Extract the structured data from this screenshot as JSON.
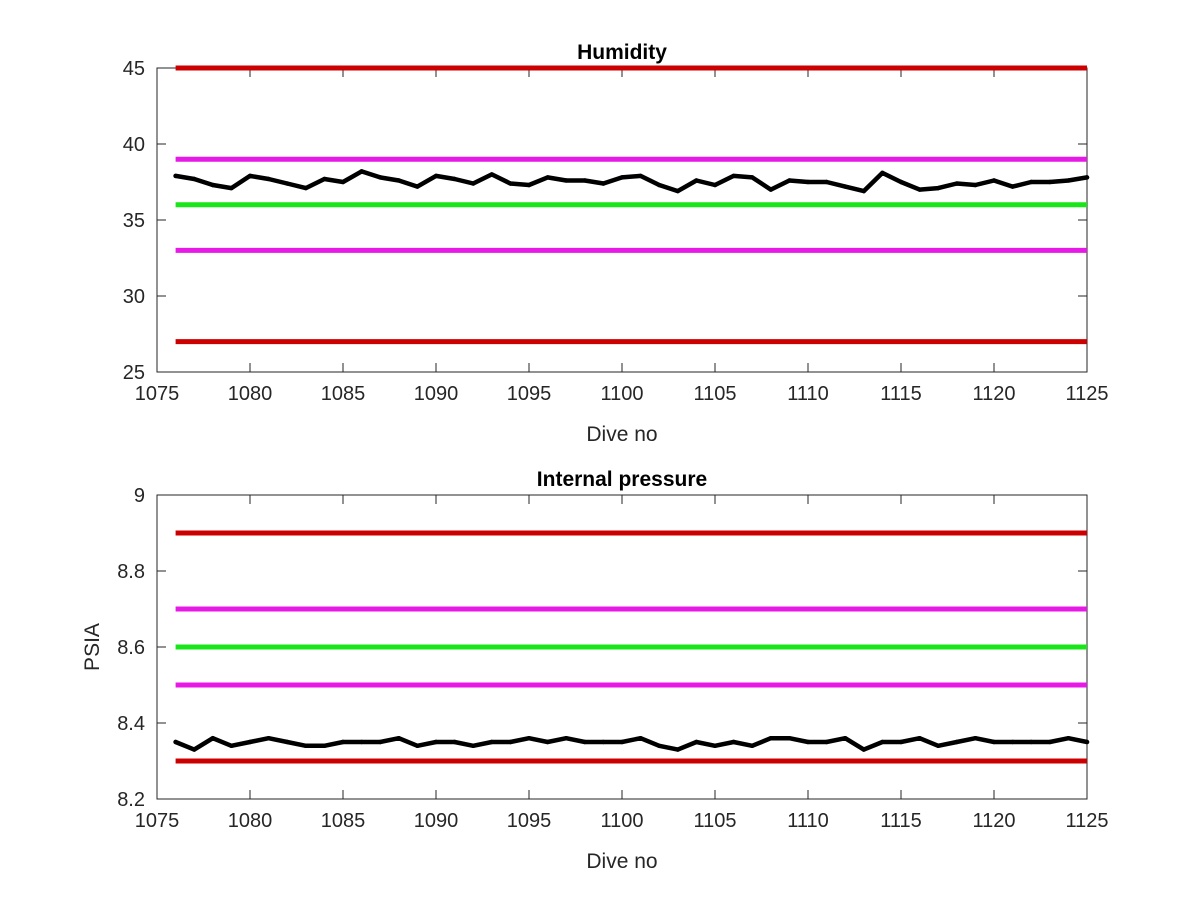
{
  "chart_data": [
    {
      "type": "line",
      "title": "Humidity",
      "xlabel": "Dive no",
      "ylabel": "",
      "xlim": [
        1075,
        1125
      ],
      "ylim": [
        25,
        45
      ],
      "xticks": [
        1075,
        1080,
        1085,
        1090,
        1095,
        1100,
        1105,
        1110,
        1115,
        1120,
        1125
      ],
      "yticks": [
        25,
        30,
        35,
        40,
        45
      ],
      "grid": false,
      "legend": "none",
      "reference_lines": [
        {
          "y": 45,
          "color": "#cc0000",
          "x_range": [
            1076,
            1125
          ]
        },
        {
          "y": 39,
          "color": "#e619e6",
          "x_range": [
            1076,
            1125
          ]
        },
        {
          "y": 36,
          "color": "#19e619",
          "x_range": [
            1076,
            1125
          ]
        },
        {
          "y": 33,
          "color": "#e619e6",
          "x_range": [
            1076,
            1125
          ]
        },
        {
          "y": 27,
          "color": "#cc0000",
          "x_range": [
            1076,
            1125
          ]
        }
      ],
      "series": [
        {
          "color": "#000000",
          "x": [
            1076,
            1077,
            1078,
            1079,
            1080,
            1081,
            1082,
            1083,
            1084,
            1085,
            1086,
            1087,
            1088,
            1089,
            1090,
            1091,
            1092,
            1093,
            1094,
            1095,
            1096,
            1097,
            1098,
            1099,
            1100,
            1101,
            1102,
            1103,
            1104,
            1105,
            1106,
            1107,
            1108,
            1109,
            1110,
            1111,
            1112,
            1113,
            1114,
            1115,
            1116,
            1117,
            1118,
            1119,
            1120,
            1121,
            1122,
            1123,
            1124,
            1125
          ],
          "y": [
            37.9,
            37.7,
            37.3,
            37.1,
            37.9,
            37.7,
            37.4,
            37.1,
            37.7,
            37.5,
            38.2,
            37.8,
            37.6,
            37.2,
            37.9,
            37.7,
            37.4,
            38.0,
            37.4,
            37.3,
            37.8,
            37.6,
            37.6,
            37.4,
            37.8,
            37.9,
            37.3,
            36.9,
            37.6,
            37.3,
            37.9,
            37.8,
            37.0,
            37.6,
            37.5,
            37.5,
            37.2,
            36.9,
            38.1,
            37.5,
            37.0,
            37.1,
            37.4,
            37.3,
            37.6,
            37.2,
            37.5,
            37.5,
            37.6,
            37.8
          ]
        }
      ]
    },
    {
      "type": "line",
      "title": "Internal pressure",
      "xlabel": "Dive no",
      "ylabel": "PSIA",
      "xlim": [
        1075,
        1125
      ],
      "ylim": [
        8.2,
        9
      ],
      "xticks": [
        1075,
        1080,
        1085,
        1090,
        1095,
        1100,
        1105,
        1110,
        1115,
        1120,
        1125
      ],
      "yticks": [
        "8.2",
        "8.4",
        "8.6",
        "8.8",
        "9"
      ],
      "grid": false,
      "legend": "none",
      "reference_lines": [
        {
          "y": 8.9,
          "color": "#cc0000",
          "x_range": [
            1076,
            1125
          ]
        },
        {
          "y": 8.7,
          "color": "#e619e6",
          "x_range": [
            1076,
            1125
          ]
        },
        {
          "y": 8.6,
          "color": "#19e619",
          "x_range": [
            1076,
            1125
          ]
        },
        {
          "y": 8.5,
          "color": "#e619e6",
          "x_range": [
            1076,
            1125
          ]
        },
        {
          "y": 8.3,
          "color": "#cc0000",
          "x_range": [
            1076,
            1125
          ]
        }
      ],
      "series": [
        {
          "color": "#000000",
          "x": [
            1076,
            1077,
            1078,
            1079,
            1080,
            1081,
            1082,
            1083,
            1084,
            1085,
            1086,
            1087,
            1088,
            1089,
            1090,
            1091,
            1092,
            1093,
            1094,
            1095,
            1096,
            1097,
            1098,
            1099,
            1100,
            1101,
            1102,
            1103,
            1104,
            1105,
            1106,
            1107,
            1108,
            1109,
            1110,
            1111,
            1112,
            1113,
            1114,
            1115,
            1116,
            1117,
            1118,
            1119,
            1120,
            1121,
            1122,
            1123,
            1124,
            1125
          ],
          "y": [
            8.35,
            8.33,
            8.36,
            8.34,
            8.35,
            8.36,
            8.35,
            8.34,
            8.34,
            8.35,
            8.35,
            8.35,
            8.36,
            8.34,
            8.35,
            8.35,
            8.34,
            8.35,
            8.35,
            8.36,
            8.35,
            8.36,
            8.35,
            8.35,
            8.35,
            8.36,
            8.34,
            8.33,
            8.35,
            8.34,
            8.35,
            8.34,
            8.36,
            8.36,
            8.35,
            8.35,
            8.36,
            8.33,
            8.35,
            8.35,
            8.36,
            8.34,
            8.35,
            8.36,
            8.35,
            8.35,
            8.35,
            8.35,
            8.36,
            8.35
          ]
        }
      ]
    }
  ]
}
